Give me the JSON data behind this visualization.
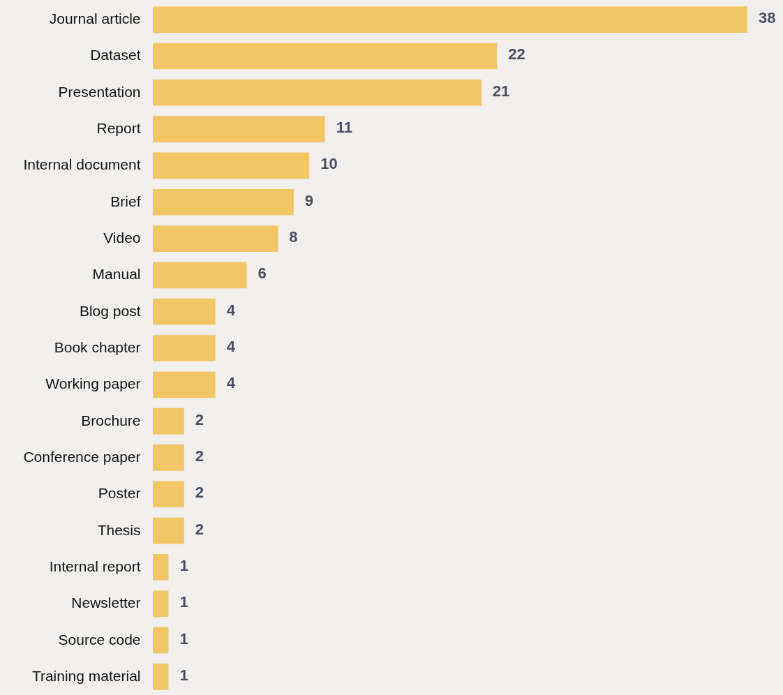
{
  "chart_data": {
    "type": "bar",
    "orientation": "horizontal",
    "data_labels": true,
    "categories": [
      "Journal article",
      "Dataset",
      "Presentation",
      "Report",
      "Internal document",
      "Brief",
      "Video",
      "Manual",
      "Blog post",
      "Book chapter",
      "Working paper",
      "Brochure",
      "Conference paper",
      "Poster",
      "Thesis",
      "Internal report",
      "Newsletter",
      "Source code",
      "Training material"
    ],
    "values": [
      38,
      22,
      21,
      11,
      10,
      9,
      8,
      6,
      4,
      4,
      4,
      2,
      2,
      2,
      2,
      1,
      1,
      1,
      1
    ],
    "color": "#f2c566"
  }
}
